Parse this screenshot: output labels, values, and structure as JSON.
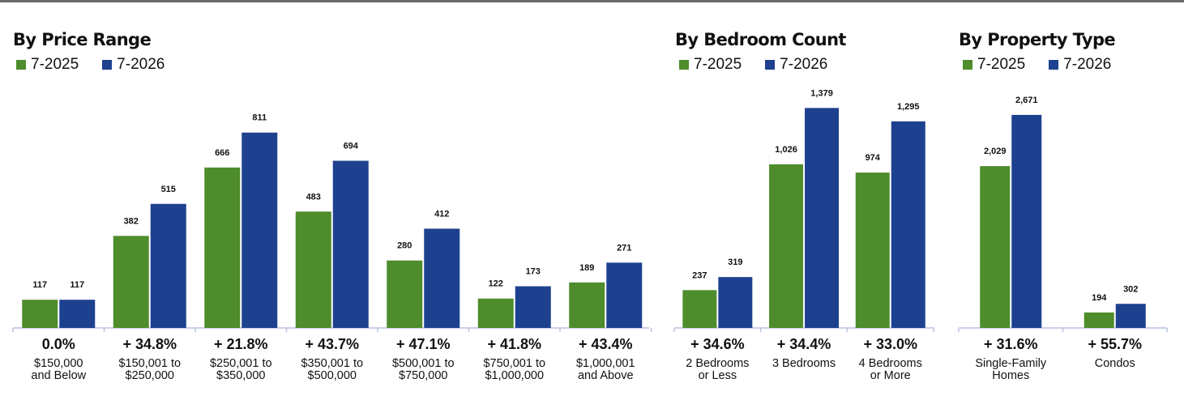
{
  "legend": {
    "series_a": "7-2025",
    "series_b": "7-2026",
    "color_a": "#4e8c2c",
    "color_b": "#1e418f"
  },
  "panels": [
    {
      "title": "By Price Range"
    },
    {
      "title": "By Bedroom Count"
    },
    {
      "title": "By Property Type"
    }
  ],
  "chart_data": [
    {
      "type": "bar",
      "title": "By Price Range",
      "series": [
        {
          "name": "7-2025",
          "values": [
            117,
            382,
            666,
            483,
            280,
            122,
            189
          ]
        },
        {
          "name": "7-2026",
          "values": [
            117,
            515,
            811,
            694,
            412,
            173,
            271
          ]
        }
      ],
      "value_labels": [
        [
          "117",
          "382",
          "666",
          "483",
          "280",
          "122",
          "189"
        ],
        [
          "117",
          "515",
          "811",
          "694",
          "412",
          "173",
          "271"
        ]
      ],
      "categories": [
        [
          "$150,000",
          "and Below"
        ],
        [
          "$150,001 to",
          "$250,000"
        ],
        [
          "$250,001 to",
          "$350,000"
        ],
        [
          "$350,001 to",
          "$500,000"
        ],
        [
          "$500,001 to",
          "$750,000"
        ],
        [
          "$750,001 to",
          "$1,000,000"
        ],
        [
          "$1,000,001",
          "and Above"
        ]
      ],
      "changes": [
        "0.0%",
        "+ 34.8%",
        "+ 21.8%",
        "+ 43.7%",
        "+ 47.1%",
        "+ 41.8%",
        "+ 43.4%"
      ]
    },
    {
      "type": "bar",
      "title": "By Bedroom Count",
      "series": [
        {
          "name": "7-2025",
          "values": [
            237,
            1026,
            974
          ]
        },
        {
          "name": "7-2026",
          "values": [
            319,
            1379,
            1295
          ]
        }
      ],
      "value_labels": [
        [
          "237",
          "1,026",
          "974"
        ],
        [
          "319",
          "1,379",
          "1,295"
        ]
      ],
      "categories": [
        [
          "2 Bedrooms",
          "or Less"
        ],
        [
          "3 Bedrooms"
        ],
        [
          "4 Bedrooms",
          "or More"
        ]
      ],
      "changes": [
        "+ 34.6%",
        "+ 34.4%",
        "+ 33.0%"
      ]
    },
    {
      "type": "bar",
      "title": "By Property Type",
      "series": [
        {
          "name": "7-2025",
          "values": [
            2029,
            194
          ]
        },
        {
          "name": "7-2026",
          "values": [
            2671,
            302
          ]
        }
      ],
      "value_labels": [
        [
          "2,029",
          "194"
        ],
        [
          "2,671",
          "302"
        ]
      ],
      "categories": [
        [
          "Single-Family",
          "Homes"
        ],
        [
          "Condos"
        ]
      ],
      "changes": [
        "+ 31.6%",
        "+ 55.7%"
      ]
    }
  ]
}
